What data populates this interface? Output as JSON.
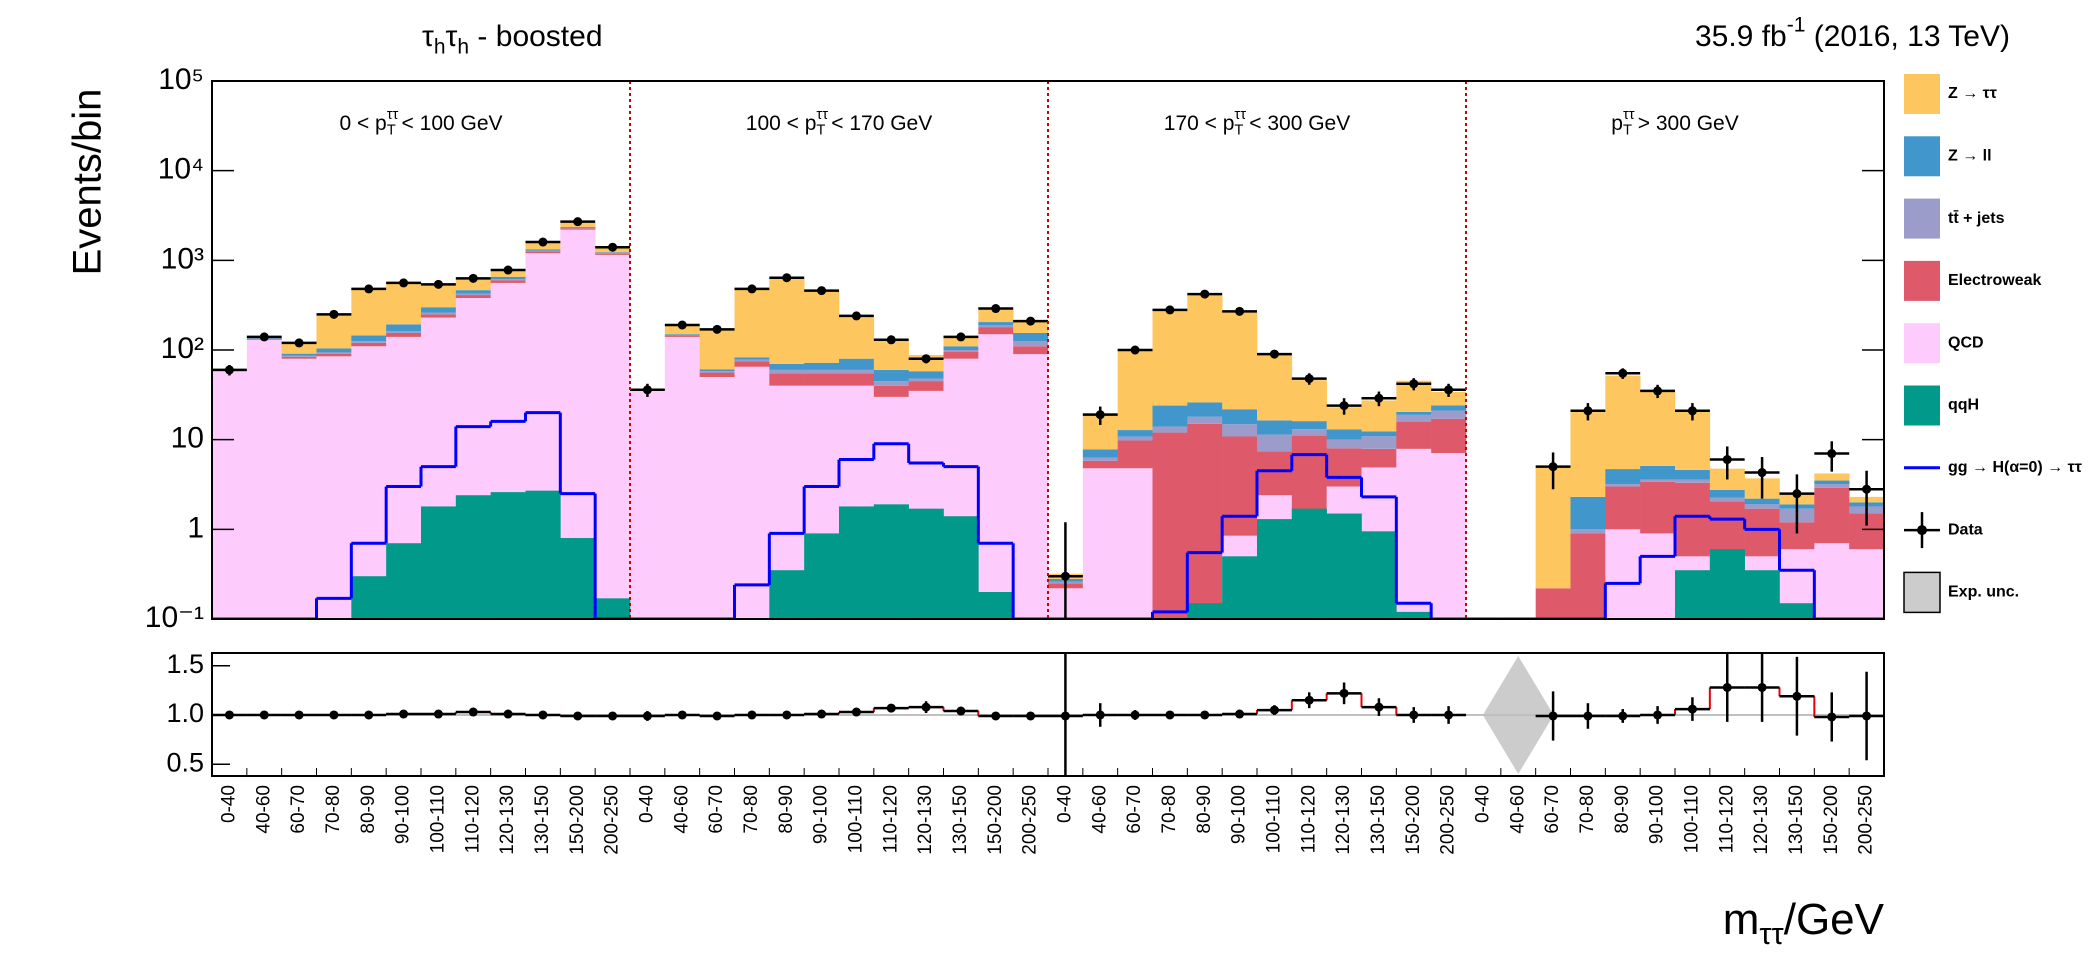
{
  "chart_data": {
    "type": "bar",
    "stacked": true,
    "log_scale": true,
    "title": [
      {
        "t": "τ"
      },
      {
        "t": "h",
        "sub": true
      },
      {
        "t": "τ"
      },
      {
        "t": "h",
        "sub": true
      },
      {
        "t": " - boosted"
      }
    ],
    "lumi": [
      {
        "t": "35.9 fb"
      },
      {
        "t": "-1",
        "sup": true
      },
      {
        "t": " (2016, 13 TeV)"
      }
    ],
    "ylabel": "Events/bin",
    "xlabel": [
      {
        "t": "m"
      },
      {
        "t": "ττ",
        "sub": true
      },
      {
        "t": "/GeV"
      }
    ],
    "regions": [
      [
        {
          "t": "0 < p"
        },
        {
          "t": "ττ",
          "sup": true
        },
        {
          "t": "T",
          "sub": true,
          "under": true
        },
        {
          "t": " < 100 GeV"
        }
      ],
      [
        {
          "t": "100 < p"
        },
        {
          "t": "ττ",
          "sup": true
        },
        {
          "t": "T",
          "sub": true,
          "under": true
        },
        {
          "t": " < 170 GeV"
        }
      ],
      [
        {
          "t": "170 < p"
        },
        {
          "t": "ττ",
          "sup": true
        },
        {
          "t": "T",
          "sub": true,
          "under": true
        },
        {
          "t": " < 300 GeV"
        }
      ],
      [
        {
          "t": "p"
        },
        {
          "t": "ττ",
          "sup": true
        },
        {
          "t": "T",
          "sub": true,
          "under": true
        },
        {
          "t": " > 300 GeV"
        }
      ]
    ],
    "categories": [
      "0-40",
      "40-60",
      "60-70",
      "70-80",
      "80-90",
      "90-100",
      "100-110",
      "110-120",
      "120-130",
      "130-150",
      "150-200",
      "200-250",
      "0-40",
      "40-60",
      "60-70",
      "70-80",
      "80-90",
      "90-100",
      "100-110",
      "110-120",
      "120-130",
      "130-150",
      "150-200",
      "200-250",
      "0-40",
      "40-60",
      "60-70",
      "70-80",
      "80-90",
      "90-100",
      "100-110",
      "110-120",
      "120-130",
      "130-150",
      "150-200",
      "200-250",
      "0-40",
      "40-60",
      "60-70",
      "70-80",
      "80-90",
      "90-100",
      "100-110",
      "110-120",
      "120-130",
      "130-150",
      "150-200",
      "200-250"
    ],
    "ylim": [
      0.1,
      100000
    ],
    "yticks": [
      {
        "value": 0.1,
        "label": "10⁻¹"
      },
      1,
      10,
      {
        "value": 100,
        "label": "10²"
      },
      {
        "value": 1000,
        "label": "10³"
      },
      {
        "value": 10000,
        "label": "10⁴"
      },
      {
        "value": 100000,
        "label": "10⁵"
      }
    ],
    "series": [
      {
        "name": "Z → ττ",
        "kind": "stack",
        "color": "#fec65e",
        "values": [
          1,
          5,
          30,
          150,
          340,
          370,
          250,
          170,
          130,
          260,
          300,
          170,
          0.5,
          40,
          110,
          400,
          570,
          390,
          160,
          70,
          30,
          30,
          90,
          60,
          0.04,
          12,
          85,
          250,
          380,
          240,
          75,
          30,
          10,
          15,
          25,
          10,
          0,
          0,
          4.8,
          18,
          47,
          30,
          17,
          2,
          1.5,
          0.6,
          0.7,
          0.3
        ]
      },
      {
        "name": "Z → ll",
        "kind": "stack",
        "color": "#4197cb",
        "values": [
          1,
          2,
          5,
          10,
          20,
          30,
          40,
          40,
          40,
          50,
          60,
          30,
          0.3,
          3,
          3,
          5,
          10,
          12,
          20,
          15,
          10,
          10,
          15,
          30,
          0.02,
          1.5,
          2,
          10,
          8,
          7,
          5,
          3,
          3,
          1.5,
          1.5,
          3,
          0,
          0,
          0,
          1.3,
          1.5,
          1.5,
          1,
          0.5,
          0.3,
          0.2,
          0.3,
          0.2
        ]
      },
      {
        "name": "tt̄ + jets",
        "kind": "stack",
        "color": "#9c9ccb",
        "values": [
          0.5,
          1,
          2,
          3,
          5,
          8,
          10,
          15,
          15,
          20,
          20,
          10,
          0.3,
          2,
          2,
          3,
          5,
          5,
          5,
          5,
          3,
          5,
          10,
          15,
          0.01,
          0.5,
          1,
          2,
          3,
          4,
          4,
          2,
          2,
          3,
          3,
          4,
          0,
          0,
          0,
          0.1,
          0.2,
          0.2,
          0.3,
          0.2,
          0.2,
          0.5,
          0.3,
          0.3
        ]
      },
      {
        "name": "Electroweak",
        "kind": "stack",
        "color": "#de5a6a",
        "values": [
          1,
          3,
          4,
          6,
          10,
          15,
          20,
          30,
          40,
          60,
          80,
          40,
          0.5,
          5,
          6,
          10,
          15,
          15,
          15,
          10,
          10,
          15,
          30,
          20,
          0.03,
          1,
          5,
          12,
          15,
          10,
          5,
          10,
          5,
          3,
          8,
          10,
          0,
          0,
          0.22,
          0.9,
          2,
          2.5,
          2.8,
          1.5,
          1.2,
          0.6,
          2.2,
          0.9
        ]
      },
      {
        "name": "QCD",
        "kind": "stack",
        "color": "#fecbfd",
        "values": [
          58,
          130,
          80,
          85,
          110,
          140,
          230,
          380,
          560,
          1200,
          2200,
          1150,
          35,
          140,
          50,
          65,
          40,
          40,
          40,
          30,
          35,
          80,
          150,
          90,
          0.22,
          4.8,
          4.8,
          0,
          0,
          0.85,
          2.4,
          1.1,
          3,
          4.9,
          7.9,
          7.1,
          0,
          0,
          0,
          0,
          1,
          0.9,
          0.5,
          0.55,
          0.5,
          0.6,
          0.7,
          0.6
        ]
      },
      {
        "name": "qqH",
        "kind": "overlay",
        "color": "#00998a",
        "values": [
          0,
          0,
          0,
          0,
          0.3,
          0.7,
          1.8,
          2.4,
          2.6,
          2.7,
          0.8,
          0.17,
          0,
          0,
          0,
          0,
          0.35,
          0.9,
          1.8,
          1.9,
          1.7,
          1.4,
          0.2,
          0,
          0,
          0,
          0,
          0,
          0.15,
          0.5,
          1.3,
          1.7,
          1.5,
          0.95,
          0.12,
          0,
          0,
          0,
          0,
          0,
          0,
          0.1,
          0.35,
          0.6,
          0.35,
          0.15,
          0,
          0
        ]
      },
      {
        "name": "gg → H(α=0) → ττ",
        "kind": "line",
        "color": "#0000ff",
        "values": [
          0.1,
          0.1,
          0.1,
          0.17,
          0.7,
          3,
          5,
          14,
          16,
          20,
          2.5,
          0.1,
          0.1,
          0.1,
          0.1,
          0.24,
          0.9,
          3,
          6,
          9,
          5.5,
          5,
          0.7,
          0.1,
          0.1,
          0.1,
          0.1,
          0.12,
          0.55,
          1.4,
          4.5,
          6.8,
          3.8,
          2.3,
          0.15,
          0.1,
          0.1,
          0.1,
          0.1,
          0.1,
          0.25,
          0.5,
          1.4,
          1.3,
          1,
          0.35,
          0.1,
          0.1
        ]
      },
      {
        "name": "Data",
        "kind": "points",
        "color": "#000000",
        "values": [
          60,
          140,
          120,
          250,
          480,
          560,
          540,
          630,
          780,
          1600,
          2700,
          1400,
          36,
          190,
          170,
          480,
          640,
          460,
          240,
          130,
          80,
          140,
          290,
          210,
          0.3,
          19,
          100,
          280,
          420,
          270,
          90,
          48,
          24,
          29,
          42,
          36,
          null,
          null,
          5,
          21,
          55,
          35,
          21,
          6,
          4.3,
          2.5,
          7,
          2.8
        ],
        "errors": [
          8,
          12,
          11,
          16,
          22,
          24,
          23,
          25,
          28,
          40,
          52,
          37,
          6,
          14,
          13,
          22,
          25,
          21,
          15,
          11,
          9,
          12,
          17,
          14,
          0.9,
          4.4,
          10,
          17,
          20,
          16,
          9.5,
          7,
          5,
          5.4,
          6.5,
          6,
          null,
          null,
          2.2,
          4.6,
          7.4,
          5.9,
          4.6,
          2.4,
          2.1,
          1.6,
          2.6,
          1.7
        ]
      }
    ],
    "uncertainty": {
      "name": "Exp. unc.",
      "color": "#cccccc",
      "ratio_values": [
        0.01,
        0.01,
        0.01,
        0.01,
        0.01,
        0.01,
        0.01,
        0.01,
        0.01,
        0.01,
        0.01,
        0.01,
        0.01,
        0.01,
        0.01,
        0.01,
        0.01,
        0.01,
        0.01,
        0.01,
        0.01,
        0.01,
        0.01,
        0.01,
        0.01,
        0.01,
        0.01,
        0.01,
        0.01,
        0.01,
        0.01,
        0.01,
        0.01,
        0.01,
        0.01,
        0.01,
        0.01,
        0.6,
        0.01,
        0.01,
        0.01,
        0.01,
        0.01,
        0.01,
        0.01,
        0.01,
        0.01,
        0.01
      ]
    },
    "ratio": {
      "ylim": [
        0.38,
        1.63
      ],
      "yticks": [
        {
          "value": 0.5,
          "label": "0.5"
        },
        {
          "value": 1,
          "label": "1.0"
        },
        {
          "value": 1.5,
          "label": "1.5"
        }
      ],
      "line_color": "#e8000b",
      "values": [
        1,
        1,
        1,
        1,
        1,
        1.01,
        1.01,
        1.03,
        1.01,
        1,
        0.99,
        0.99,
        0.99,
        1,
        0.99,
        1,
        1,
        1.01,
        1.03,
        1.07,
        1.08,
        1.04,
        0.99,
        0.99,
        0.99,
        1,
        1,
        1,
        1,
        1.01,
        1.05,
        1.15,
        1.22,
        1.08,
        1,
        1,
        null,
        null,
        0.99,
        0.99,
        0.99,
        1,
        1.06,
        1.28,
        1.28,
        1.19,
        0.98,
        0.99
      ],
      "errors": [
        0.03,
        0.03,
        0.03,
        0.02,
        0.02,
        0.01,
        0.01,
        0.01,
        0.01,
        0.01,
        0.01,
        0.01,
        0.05,
        0.03,
        0.03,
        0.02,
        0.02,
        0.02,
        0.03,
        0.04,
        0.06,
        0.04,
        0.03,
        0.03,
        0.9,
        0.12,
        0.05,
        0.03,
        0.02,
        0.03,
        0.05,
        0.08,
        0.11,
        0.09,
        0.08,
        0.09,
        null,
        null,
        0.25,
        0.13,
        0.07,
        0.09,
        0.12,
        0.35,
        0.35,
        0.4,
        0.25,
        0.45
      ]
    }
  }
}
